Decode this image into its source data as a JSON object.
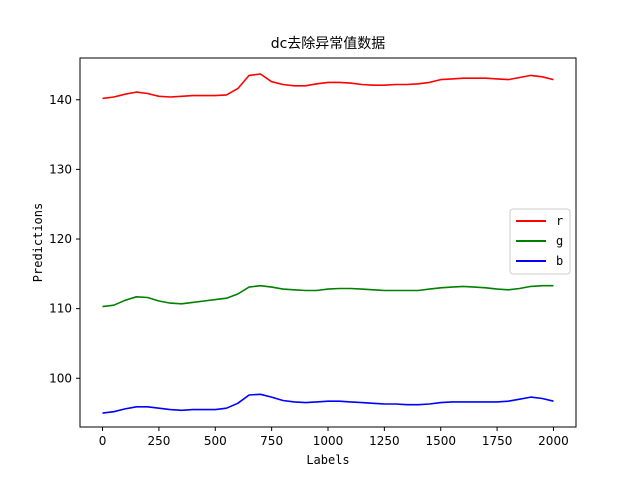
{
  "chart_data": {
    "type": "line",
    "title": "dc去除异常值数据",
    "xlabel": "Labels",
    "ylabel": "Predictions",
    "xlim": [
      -100,
      2100
    ],
    "ylim": [
      93,
      146
    ],
    "xticks": [
      0,
      250,
      500,
      750,
      1000,
      1250,
      1500,
      1750,
      2000
    ],
    "yticks": [
      100,
      110,
      120,
      130,
      140
    ],
    "grid": false,
    "legend_position": "center-right",
    "series": [
      {
        "name": "r",
        "color": "#ff0000",
        "x": [
          0,
          50,
          100,
          150,
          200,
          250,
          300,
          350,
          400,
          450,
          500,
          550,
          600,
          650,
          700,
          750,
          800,
          850,
          900,
          950,
          1000,
          1050,
          1100,
          1150,
          1200,
          1250,
          1300,
          1350,
          1400,
          1450,
          1500,
          1550,
          1600,
          1650,
          1700,
          1750,
          1800,
          1850,
          1900,
          1950,
          2000
        ],
        "y": [
          140.2,
          140.4,
          140.8,
          141.1,
          140.9,
          140.5,
          140.4,
          140.5,
          140.6,
          140.6,
          140.6,
          140.7,
          141.6,
          143.5,
          143.7,
          142.6,
          142.2,
          142.0,
          142.0,
          142.3,
          142.5,
          142.5,
          142.4,
          142.2,
          142.1,
          142.1,
          142.2,
          142.2,
          142.3,
          142.5,
          142.9,
          143.0,
          143.1,
          143.1,
          143.1,
          143.0,
          142.9,
          143.2,
          143.5,
          143.3,
          142.9
        ]
      },
      {
        "name": "g",
        "color": "#008000",
        "x": [
          0,
          50,
          100,
          150,
          200,
          250,
          300,
          350,
          400,
          450,
          500,
          550,
          600,
          650,
          700,
          750,
          800,
          850,
          900,
          950,
          1000,
          1050,
          1100,
          1150,
          1200,
          1250,
          1300,
          1350,
          1400,
          1450,
          1500,
          1550,
          1600,
          1650,
          1700,
          1750,
          1800,
          1850,
          1900,
          1950,
          2000
        ],
        "y": [
          110.3,
          110.5,
          111.2,
          111.7,
          111.6,
          111.1,
          110.8,
          110.7,
          110.9,
          111.1,
          111.3,
          111.5,
          112.1,
          113.1,
          113.3,
          113.1,
          112.8,
          112.7,
          112.6,
          112.6,
          112.8,
          112.9,
          112.9,
          112.8,
          112.7,
          112.6,
          112.6,
          112.6,
          112.6,
          112.8,
          113.0,
          113.1,
          113.2,
          113.1,
          113.0,
          112.8,
          112.7,
          112.9,
          113.2,
          113.3,
          113.3
        ]
      },
      {
        "name": "b",
        "color": "#0000ff",
        "x": [
          0,
          50,
          100,
          150,
          200,
          250,
          300,
          350,
          400,
          450,
          500,
          550,
          600,
          650,
          700,
          750,
          800,
          850,
          900,
          950,
          1000,
          1050,
          1100,
          1150,
          1200,
          1250,
          1300,
          1350,
          1400,
          1450,
          1500,
          1550,
          1600,
          1650,
          1700,
          1750,
          1800,
          1850,
          1900,
          1950,
          2000
        ],
        "y": [
          95.0,
          95.2,
          95.6,
          95.9,
          95.9,
          95.7,
          95.5,
          95.4,
          95.5,
          95.5,
          95.5,
          95.7,
          96.4,
          97.6,
          97.7,
          97.3,
          96.8,
          96.6,
          96.5,
          96.6,
          96.7,
          96.7,
          96.6,
          96.5,
          96.4,
          96.3,
          96.3,
          96.2,
          96.2,
          96.3,
          96.5,
          96.6,
          96.6,
          96.6,
          96.6,
          96.6,
          96.7,
          97.0,
          97.3,
          97.1,
          96.7
        ]
      }
    ]
  }
}
